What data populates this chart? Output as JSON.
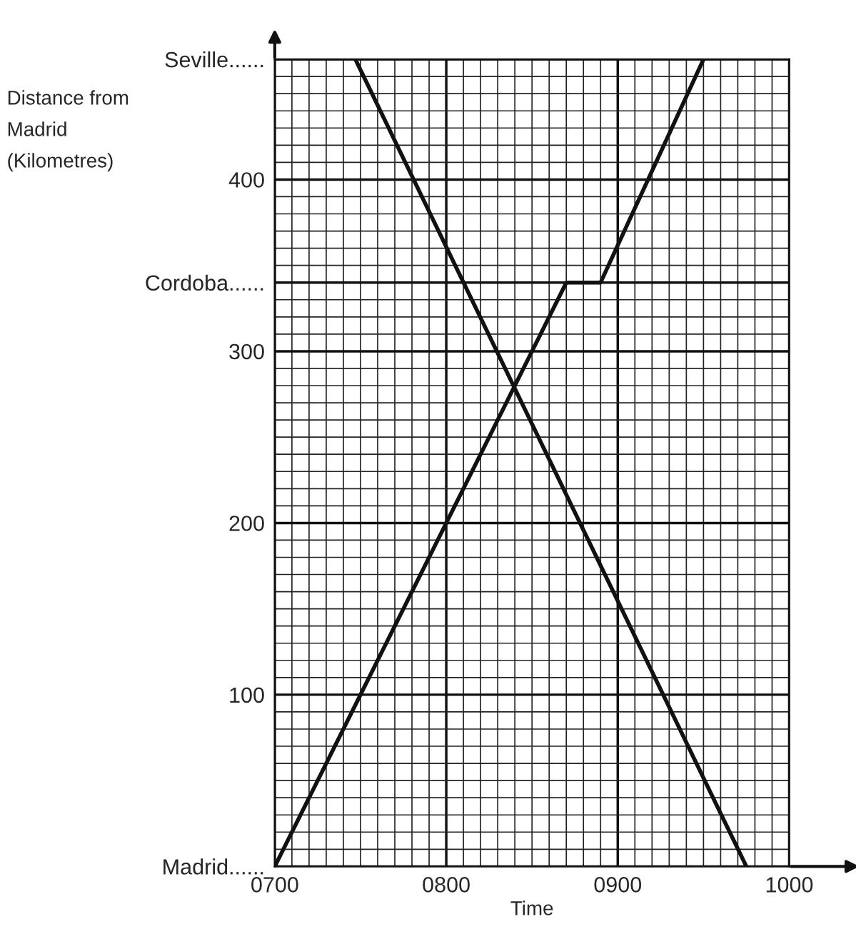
{
  "chart_data": {
    "type": "line",
    "xlabel": "Time",
    "ylabel": "Distance from\nMadrid\n(Kilometres)",
    "series": [
      {
        "color": "#111111",
        "x": [
          700,
          870,
          890,
          950
        ],
        "values": [
          0,
          340,
          340,
          470
        ]
      },
      {
        "color": "#111111",
        "x": [
          747,
          975
        ],
        "values": [
          470,
          0
        ]
      }
    ],
    "xlim": [
      700,
      1000
    ],
    "ylim": [
      0,
      470
    ],
    "xticks": [
      {
        "value": 700,
        "label": "0700"
      },
      {
        "value": 800,
        "label": "0800"
      },
      {
        "value": 900,
        "label": "0900"
      },
      {
        "value": 1000,
        "label": "1000"
      }
    ],
    "yticks": [
      {
        "value": 0,
        "label": "Madrid......"
      },
      100,
      200,
      300,
      {
        "value": 340,
        "label": "Cordoba......"
      },
      400,
      {
        "value": 470,
        "label": "Seville......"
      }
    ],
    "grid": true,
    "marker": "none",
    "line_style": "solid"
  }
}
